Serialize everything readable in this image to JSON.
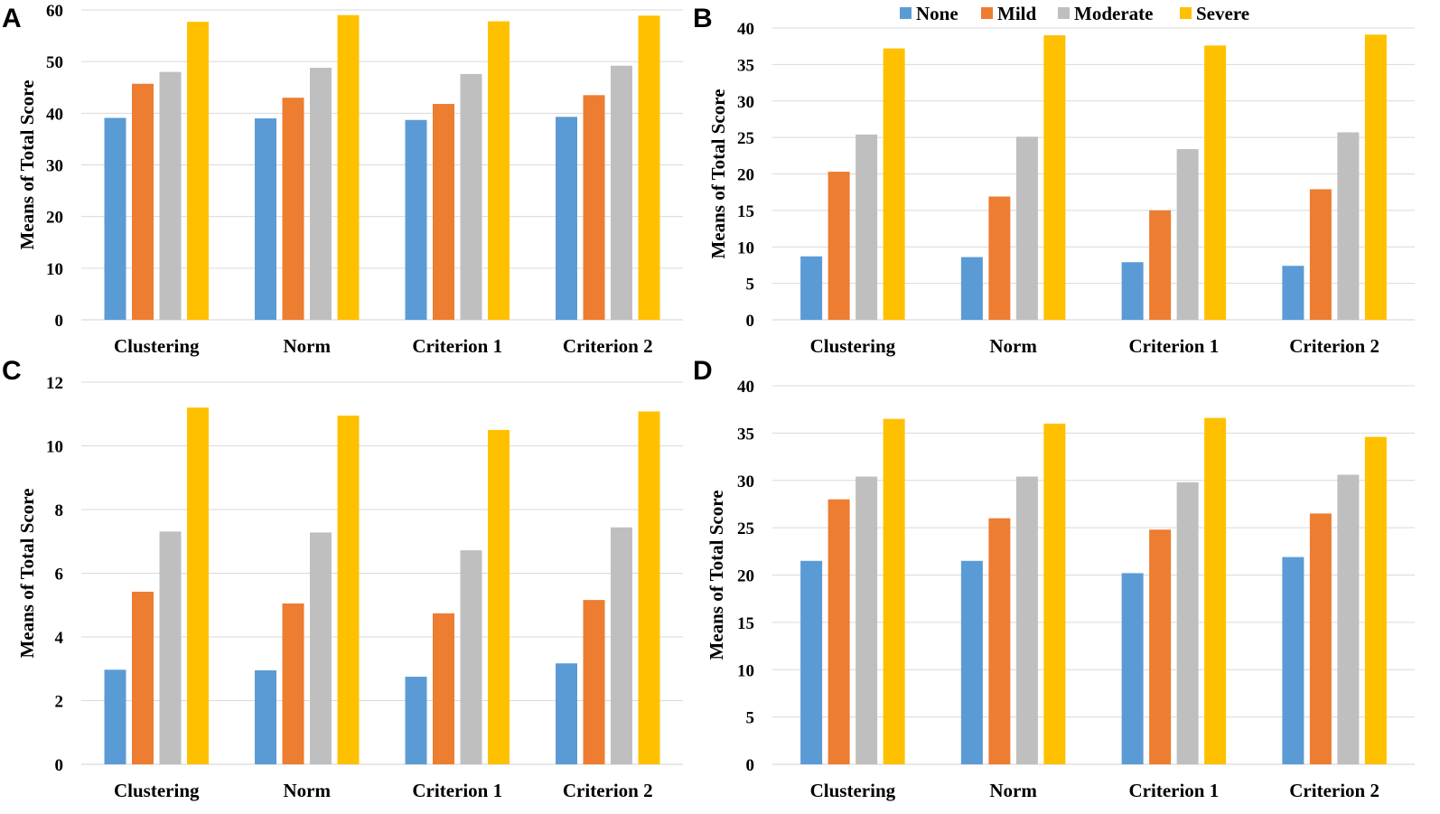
{
  "legend": [
    {
      "name": "None",
      "color": "#5b9bd5"
    },
    {
      "name": "Mild",
      "color": "#ed7d31"
    },
    {
      "name": "Moderate",
      "color": "#bfbfbf"
    },
    {
      "name": "Severe",
      "color": "#ffc000"
    }
  ],
  "chart_data": [
    {
      "panel": "A",
      "type": "bar",
      "categories": [
        "Clustering",
        "Norm",
        "Criterion 1",
        "Criterion 2"
      ],
      "ylabel": "Means of Total Score",
      "ylim": [
        0,
        60
      ],
      "yticks": [
        0,
        10,
        20,
        30,
        40,
        50,
        60
      ],
      "series": [
        {
          "name": "None",
          "values": [
            39.1,
            39.0,
            38.7,
            39.3
          ]
        },
        {
          "name": "Mild",
          "values": [
            45.7,
            43.0,
            41.8,
            43.5
          ]
        },
        {
          "name": "Moderate",
          "values": [
            48.0,
            48.8,
            47.6,
            49.2
          ]
        },
        {
          "name": "Severe",
          "values": [
            57.7,
            59.0,
            57.8,
            58.9
          ]
        }
      ]
    },
    {
      "panel": "B",
      "type": "bar",
      "categories": [
        "Clustering",
        "Norm",
        "Criterion 1",
        "Criterion 2"
      ],
      "ylabel": "Means of Total Score",
      "ylim": [
        0,
        40
      ],
      "yticks": [
        0,
        5,
        10,
        15,
        20,
        25,
        30,
        35,
        40
      ],
      "series": [
        {
          "name": "None",
          "values": [
            8.7,
            8.6,
            7.9,
            7.4
          ]
        },
        {
          "name": "Mild",
          "values": [
            20.3,
            16.9,
            15.0,
            17.9
          ]
        },
        {
          "name": "Moderate",
          "values": [
            25.4,
            25.1,
            23.4,
            25.7
          ]
        },
        {
          "name": "Severe",
          "values": [
            37.2,
            39.0,
            37.6,
            39.1
          ]
        }
      ]
    },
    {
      "panel": "C",
      "type": "bar",
      "categories": [
        "Clustering",
        "Norm",
        "Criterion 1",
        "Criterion 2"
      ],
      "ylabel": "Means of Total Score",
      "ylim": [
        0,
        12
      ],
      "yticks": [
        0,
        2,
        4,
        6,
        8,
        10,
        12
      ],
      "series": [
        {
          "name": "None",
          "values": [
            2.97,
            2.95,
            2.75,
            3.17
          ]
        },
        {
          "name": "Mild",
          "values": [
            5.42,
            5.05,
            4.74,
            5.16
          ]
        },
        {
          "name": "Moderate",
          "values": [
            7.31,
            7.28,
            6.72,
            7.44
          ]
        },
        {
          "name": "Severe",
          "values": [
            11.2,
            10.95,
            10.5,
            11.08
          ]
        }
      ]
    },
    {
      "panel": "D",
      "type": "bar",
      "categories": [
        "Clustering",
        "Norm",
        "Criterion 1",
        "Criterion 2"
      ],
      "ylabel": "Means of Total Score",
      "ylim": [
        0,
        40
      ],
      "yticks": [
        0,
        5,
        10,
        15,
        20,
        25,
        30,
        35,
        40
      ],
      "series": [
        {
          "name": "None",
          "values": [
            21.5,
            21.5,
            20.2,
            21.9
          ]
        },
        {
          "name": "Mild",
          "values": [
            28.0,
            26.0,
            24.8,
            26.5
          ]
        },
        {
          "name": "Moderate",
          "values": [
            30.4,
            30.4,
            29.8,
            30.6
          ]
        },
        {
          "name": "Severe",
          "values": [
            36.5,
            36.0,
            36.6,
            34.6
          ]
        }
      ]
    }
  ]
}
